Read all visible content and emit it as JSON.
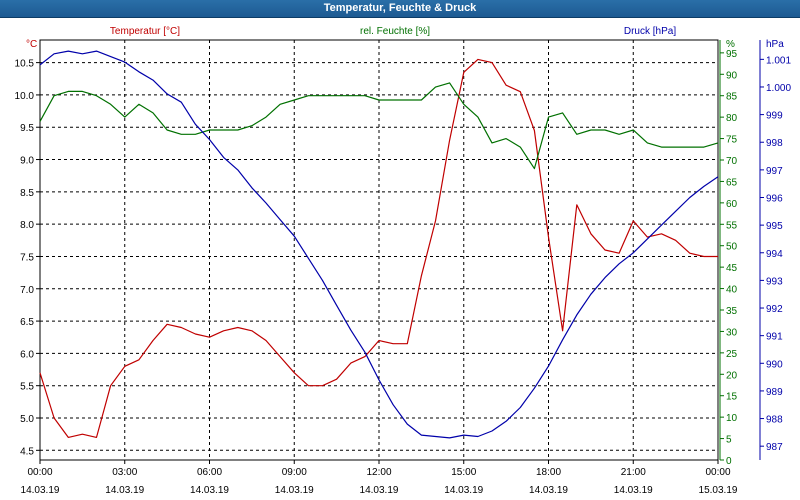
{
  "window": {
    "title": "Temperatur, Feuchte & Druck"
  },
  "chart_data": {
    "type": "line",
    "x": [
      "00:00",
      "00:30",
      "01:00",
      "01:30",
      "02:00",
      "02:30",
      "03:00",
      "03:30",
      "04:00",
      "04:30",
      "05:00",
      "05:30",
      "06:00",
      "06:30",
      "07:00",
      "07:30",
      "08:00",
      "08:30",
      "09:00",
      "09:30",
      "10:00",
      "10:30",
      "11:00",
      "11:30",
      "12:00",
      "12:30",
      "13:00",
      "13:30",
      "14:00",
      "14:30",
      "15:00",
      "15:30",
      "16:00",
      "16:30",
      "17:00",
      "17:30",
      "18:00",
      "18:30",
      "19:00",
      "19:30",
      "20:00",
      "20:30",
      "21:00",
      "21:30",
      "22:00",
      "22:30",
      "23:00",
      "23:30",
      "00:00"
    ],
    "x_ticks": [
      {
        "time": "00:00",
        "date": "14.03.19"
      },
      {
        "time": "03:00",
        "date": "14.03.19"
      },
      {
        "time": "06:00",
        "date": "14.03.19"
      },
      {
        "time": "09:00",
        "date": "14.03.19"
      },
      {
        "time": "12:00",
        "date": "14.03.19"
      },
      {
        "time": "15:00",
        "date": "14.03.19"
      },
      {
        "time": "18:00",
        "date": "14.03.19"
      },
      {
        "time": "21:00",
        "date": "14.03.19"
      },
      {
        "time": "00:00",
        "date": "15.03.19"
      }
    ],
    "axes": {
      "temperature": {
        "label": "Temperatur [°C]",
        "unit": "°C",
        "range": [
          4.35,
          10.85
        ],
        "ticks": [
          "4.5",
          "5.0",
          "5.5",
          "6.0",
          "6.5",
          "7.0",
          "7.5",
          "8.0",
          "8.5",
          "9.0",
          "9.5",
          "10.0",
          "10.5"
        ],
        "color": "#c00000"
      },
      "humidity": {
        "label": "rel. Feuchte [%]",
        "unit": "%",
        "range": [
          0,
          98
        ],
        "ticks": [
          "0",
          "5",
          "10",
          "15",
          "20",
          "25",
          "30",
          "35",
          "40",
          "45",
          "50",
          "55",
          "60",
          "65",
          "70",
          "75",
          "80",
          "85",
          "90",
          "95"
        ],
        "color": "#007000"
      },
      "pressure": {
        "label": "Druck [hPa]",
        "unit": "hPa",
        "range": [
          986.5,
          1001.7
        ],
        "ticks": [
          "987",
          "988",
          "989",
          "990",
          "991",
          "992",
          "993",
          "994",
          "995",
          "996",
          "997",
          "998",
          "999",
          "1.000",
          "1.001"
        ],
        "color": "#0000aa"
      }
    },
    "grid": true,
    "series": [
      {
        "name": "Temperatur [°C]",
        "axis": "temperature",
        "color": "#c00000",
        "values": [
          5.7,
          5.0,
          4.7,
          4.75,
          4.7,
          5.5,
          5.8,
          5.9,
          6.2,
          6.45,
          6.4,
          6.3,
          6.25,
          6.35,
          6.4,
          6.35,
          6.2,
          5.95,
          5.7,
          5.5,
          5.5,
          5.6,
          5.85,
          5.95,
          6.2,
          6.15,
          6.15,
          7.2,
          8.05,
          9.3,
          10.35,
          10.55,
          10.5,
          10.15,
          10.05,
          9.45,
          7.8,
          6.35,
          8.3,
          7.85,
          7.6,
          7.55,
          8.05,
          7.8,
          7.85,
          7.75,
          7.55,
          7.5,
          7.5
        ]
      },
      {
        "name": "rel. Feuchte [%]",
        "axis": "humidity",
        "color": "#007000",
        "values": [
          79,
          85,
          86,
          86,
          85,
          83,
          80,
          83,
          81,
          77,
          76,
          76,
          77,
          77,
          77,
          78,
          80,
          83,
          84,
          85,
          85,
          85,
          85,
          85,
          84,
          84,
          84,
          84,
          87,
          88,
          83,
          80,
          74,
          75,
          73,
          68,
          80,
          81,
          76,
          77,
          77,
          76,
          77,
          74,
          73,
          73,
          73,
          73,
          74
        ]
      },
      {
        "name": "Druck [hPa]",
        "axis": "pressure",
        "color": "#0000aa",
        "values": [
          1000.8,
          1001.2,
          1001.3,
          1001.2,
          1001.3,
          1001.1,
          1000.9,
          1000.55,
          1000.25,
          999.75,
          999.45,
          998.65,
          998.1,
          997.45,
          997.0,
          996.35,
          995.8,
          995.2,
          994.6,
          993.8,
          993.0,
          992.1,
          991.2,
          990.4,
          989.4,
          988.5,
          987.8,
          987.4,
          987.35,
          987.3,
          987.4,
          987.35,
          987.55,
          987.9,
          988.4,
          989.1,
          989.9,
          990.85,
          991.75,
          992.5,
          993.1,
          993.6,
          994.0,
          994.5,
          995.0,
          995.5,
          996.0,
          996.4,
          996.75
        ]
      }
    ]
  }
}
